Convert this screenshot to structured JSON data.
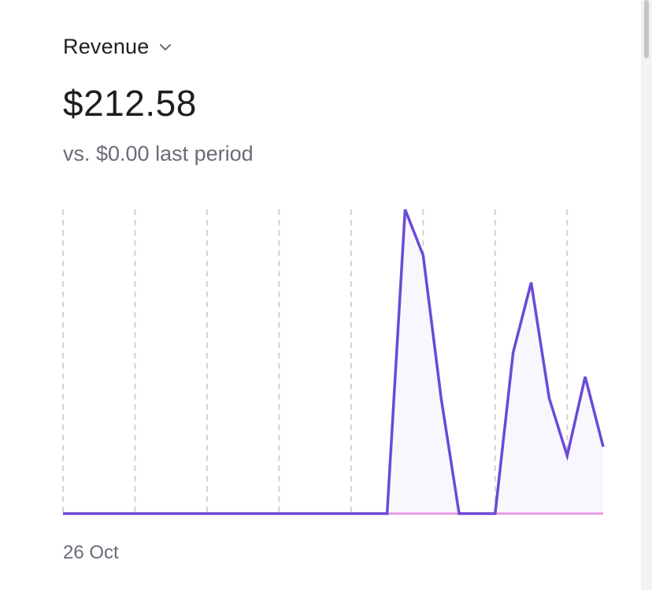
{
  "metric": {
    "label": "Revenue",
    "dropdown_icon": "chevron-down-icon"
  },
  "summary": {
    "amount": "$212.58",
    "comparison": "vs. $0.00 last period"
  },
  "colors": {
    "current_line": "#6a4ad8",
    "current_fill": "#f8f7fd",
    "previous_line": "#e79be6",
    "grid": "#d2d2d6"
  },
  "chart_data": {
    "type": "area",
    "title": "",
    "xlabel": "",
    "ylabel": "",
    "x_tick_labels": [
      "26 Oct"
    ],
    "grid": "vertical dashed",
    "ylim": [
      0,
      100
    ],
    "series": [
      {
        "values": [
          0,
          0,
          0,
          0,
          0,
          0,
          0,
          0,
          0,
          0,
          0,
          0,
          0,
          0,
          0,
          0,
          0,
          0,
          0,
          100,
          85,
          38,
          0,
          0,
          0,
          53,
          76,
          38,
          19,
          45,
          22
        ]
      },
      {
        "values": [
          0,
          0,
          0,
          0,
          0,
          0,
          0,
          0,
          0,
          0,
          0,
          0,
          0,
          0,
          0,
          0,
          0,
          0,
          0,
          0,
          0,
          0,
          0,
          0,
          0,
          0,
          0,
          0,
          0,
          0,
          0
        ]
      }
    ]
  }
}
